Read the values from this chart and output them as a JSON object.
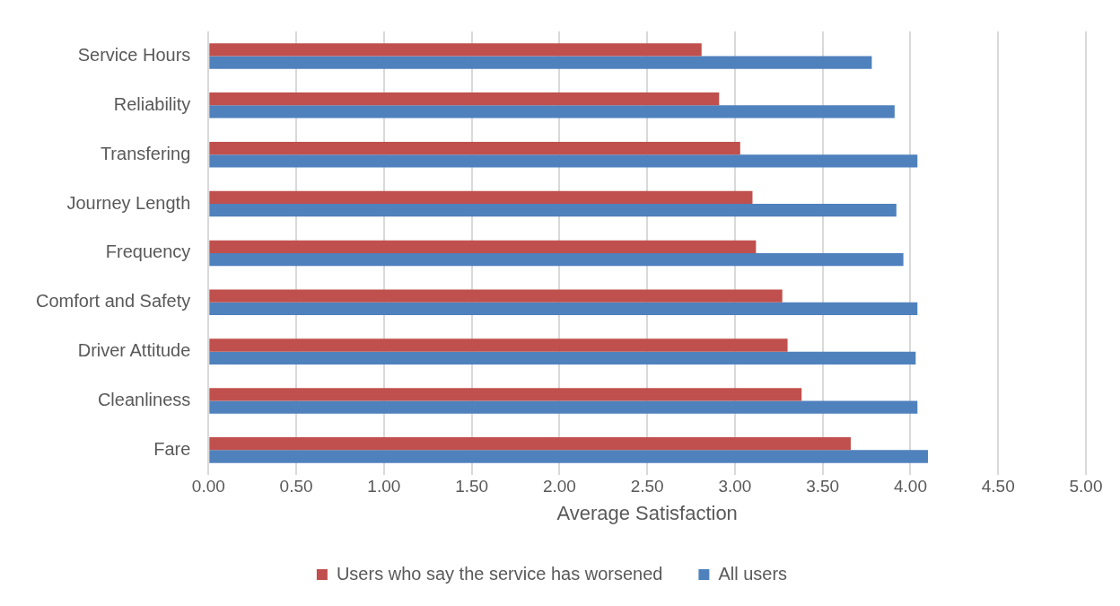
{
  "chart_data": {
    "type": "bar",
    "orientation": "horizontal",
    "xlabel": "Average Satisfaction",
    "categories": [
      "Service Hours",
      "Reliability",
      "Transfering",
      "Journey Length",
      "Frequency",
      "Comfort and Safety",
      "Driver Attitude",
      "Cleanliness",
      "Fare"
    ],
    "series": [
      {
        "name": "Users who say the service has worsened",
        "color": "#c0504d",
        "values": [
          2.81,
          2.91,
          3.03,
          3.1,
          3.12,
          3.27,
          3.3,
          3.38,
          3.66
        ]
      },
      {
        "name": "All users",
        "color": "#4f81bd",
        "values": [
          3.78,
          3.91,
          4.04,
          3.92,
          3.96,
          4.04,
          4.03,
          4.04,
          4.1
        ]
      }
    ],
    "xlim": [
      0,
      5
    ],
    "xticks": [
      {
        "value": 0,
        "label": "0.00"
      },
      {
        "value": 0.5,
        "label": "0.50"
      },
      {
        "value": 1,
        "label": "1.00"
      },
      {
        "value": 1.5,
        "label": "1.50"
      },
      {
        "value": 2,
        "label": "2.00"
      },
      {
        "value": 2.5,
        "label": "2.50"
      },
      {
        "value": 3,
        "label": "3.00"
      },
      {
        "value": 3.5,
        "label": "3.50"
      },
      {
        "value": 4,
        "label": "4.00"
      },
      {
        "value": 4.5,
        "label": "4.50"
      },
      {
        "value": 5,
        "label": "5.00"
      }
    ],
    "grid": "x",
    "legend": "bottom"
  }
}
